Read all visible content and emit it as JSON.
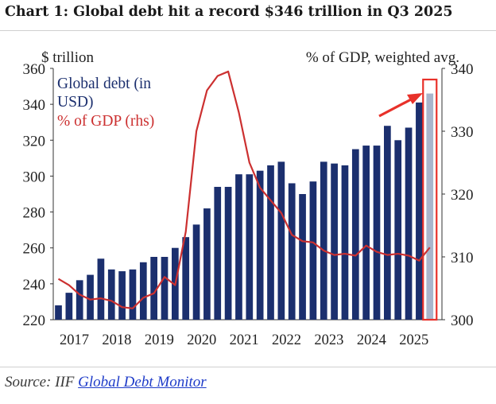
{
  "title": "Chart 1: Global debt hit a record $346 trillion in Q3 2025",
  "source": {
    "prefix": "Source: IIF ",
    "link_text": "Global Debt Monitor"
  },
  "chart_data": {
    "type": "bar",
    "left_axis_label": "$ trillion",
    "right_axis_label": "% of GDP, weighted avg.",
    "x_tick_labels": [
      "2017",
      "2018",
      "2019",
      "2020",
      "2021",
      "2022",
      "2023",
      "2024",
      "2025"
    ],
    "ylim_left": [
      220,
      360
    ],
    "yticks_left": [
      220,
      240,
      260,
      280,
      300,
      320,
      340,
      360
    ],
    "ylim_right": [
      300,
      340
    ],
    "yticks_right": [
      300,
      310,
      320,
      330,
      340
    ],
    "grid": false,
    "legend_placement": "top-left",
    "series": [
      {
        "name": "Global debt (in USD)",
        "axis": "left",
        "kind": "bar",
        "color": "#1b2f6e",
        "values": [
          228,
          235,
          242,
          245,
          254,
          248,
          247,
          248,
          252,
          255,
          255,
          260,
          266,
          273,
          282,
          294,
          294,
          301,
          301,
          303,
          306,
          308,
          296,
          290,
          297,
          308,
          307,
          306,
          315,
          317,
          317,
          328,
          320,
          327,
          341,
          346
        ]
      },
      {
        "name": "% of GDP (rhs)",
        "axis": "right",
        "kind": "line",
        "color": "#cc3030",
        "values": [
          306.5,
          305.5,
          304.0,
          303.2,
          303.4,
          303.0,
          302.0,
          301.8,
          303.5,
          304.2,
          306.8,
          305.5,
          314.0,
          330.0,
          336.5,
          338.8,
          339.5,
          333.0,
          325.0,
          321.0,
          319.0,
          317.0,
          313.5,
          312.5,
          312.3,
          311.0,
          310.3,
          310.5,
          310.2,
          311.8,
          310.8,
          310.3,
          310.5,
          310.2,
          309.4,
          311.5
        ]
      }
    ],
    "highlight": {
      "bar_index": 35,
      "bar_color": "#a9b5cc",
      "box_color": "#e8312a",
      "arrow_color": "#e8312a"
    }
  }
}
